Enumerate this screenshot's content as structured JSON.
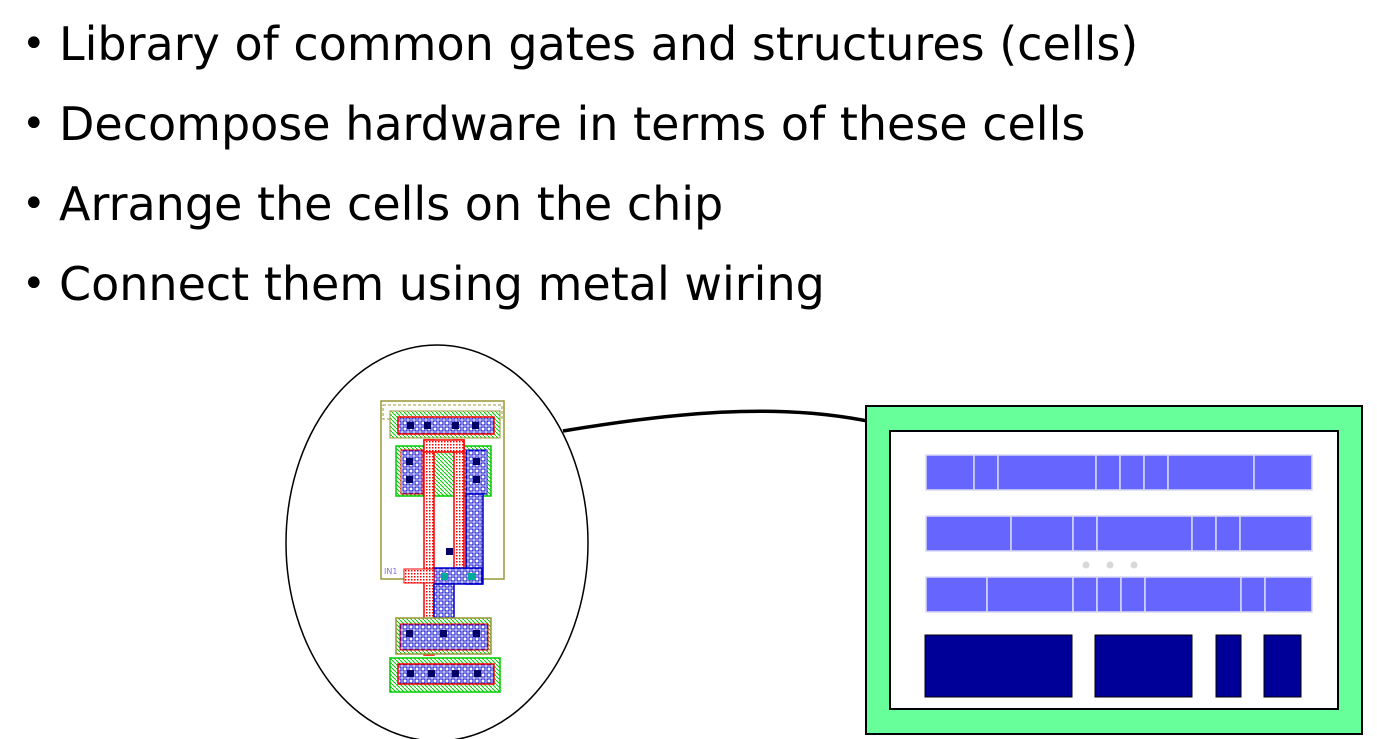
{
  "bullets": [
    "Library of common gates and structures (cells)",
    "Decompose hardware in terms of these cells",
    "Arrange the cells on the chip",
    "Connect them using metal wiring"
  ],
  "bullet_glyph": "•",
  "cell_layout": {
    "pin_label": "IN1",
    "label_color": "#8a6fd6"
  },
  "colors": {
    "chip_border": "#66ff99",
    "cell_row": "#6666ff",
    "macro_block": "#000099",
    "arrow": "#000000",
    "poly": "#ff0000",
    "diffusion": "#00cc00",
    "metal": "#0000cc",
    "contact": "#000066",
    "outline": "#999933",
    "via": "#00aa99"
  }
}
